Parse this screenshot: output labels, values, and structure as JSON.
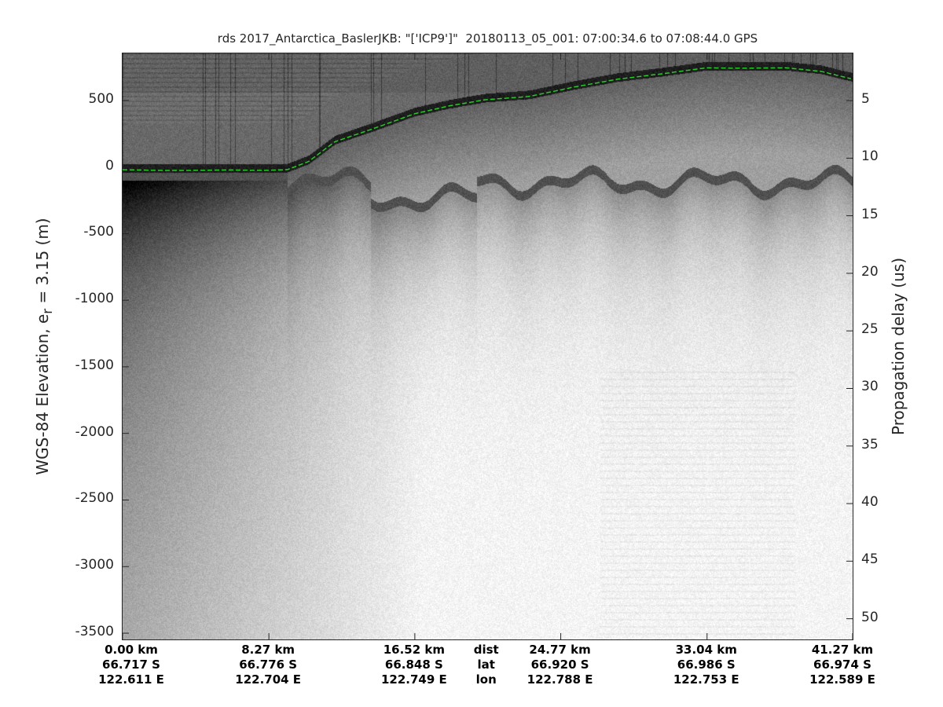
{
  "chart_data": {
    "type": "image",
    "title": "rds 2017_Antarctica_BaslerJKB: \"['ICP9']\"  20180113_05_001: 07:00:34.6 to 07:08:44.0 GPS",
    "ylabel": "WGS-84 Elevation, e",
    "ylabel_sub": "r",
    "ylabel_tail": " = 3.15 (m)",
    "y2label": "Propagation delay (us)",
    "ylim": [
      -3547,
      853
    ],
    "y2lim": [
      0.9,
      51.8
    ],
    "yticks": [
      "500",
      "0",
      "-500",
      "-1000",
      "-1500",
      "-2000",
      "-2500",
      "-3000",
      "-3500"
    ],
    "yticks_values": [
      500,
      0,
      -500,
      -1000,
      -1500,
      -2000,
      -2500,
      -3000,
      -3500
    ],
    "y2ticks": [
      "5",
      "10",
      "15",
      "20",
      "25",
      "30",
      "35",
      "40",
      "45",
      "50"
    ],
    "y2ticks_values": [
      5,
      10,
      15,
      20,
      25,
      30,
      35,
      40,
      45,
      50
    ],
    "xlim_km": [
      0,
      41.27
    ],
    "xticks": [
      {
        "dist": "0.00 km",
        "lat": "66.717 S",
        "lon": "122.611 E",
        "km": 0
      },
      {
        "dist": "8.27 km",
        "lat": "66.776 S",
        "lon": "122.704 E",
        "km": 8.27
      },
      {
        "dist": "16.52 km",
        "lat": "66.848 S",
        "lon": "122.749 E",
        "km": 16.52
      },
      {
        "dist": "24.77 km",
        "lat": "66.920 S",
        "lon": "122.788 E",
        "km": 24.77
      },
      {
        "dist": "33.04 km",
        "lat": "66.986 S",
        "lon": "122.753 E",
        "km": 33.04
      },
      {
        "dist": "41.27 km",
        "lat": "66.974 S",
        "lon": "122.589 E",
        "km": 41.27
      }
    ],
    "row_labels": {
      "dist": "dist",
      "lat": "lat",
      "lon": "lon"
    },
    "colormap": "gray",
    "surface_line": {
      "color": "#22cc22",
      "style": "dashed",
      "km": [
        0,
        2,
        4,
        6,
        8,
        9.3,
        10.5,
        12,
        14,
        16.5,
        18.5,
        20.5,
        23,
        25.5,
        28,
        30.5,
        33,
        35,
        37.5,
        39.5,
        41.27
      ],
      "elevation_m": [
        -20,
        -25,
        -25,
        -22,
        -25,
        -20,
        40,
        190,
        280,
        400,
        460,
        505,
        530,
        600,
        660,
        700,
        745,
        742,
        745,
        718,
        660
      ]
    }
  }
}
